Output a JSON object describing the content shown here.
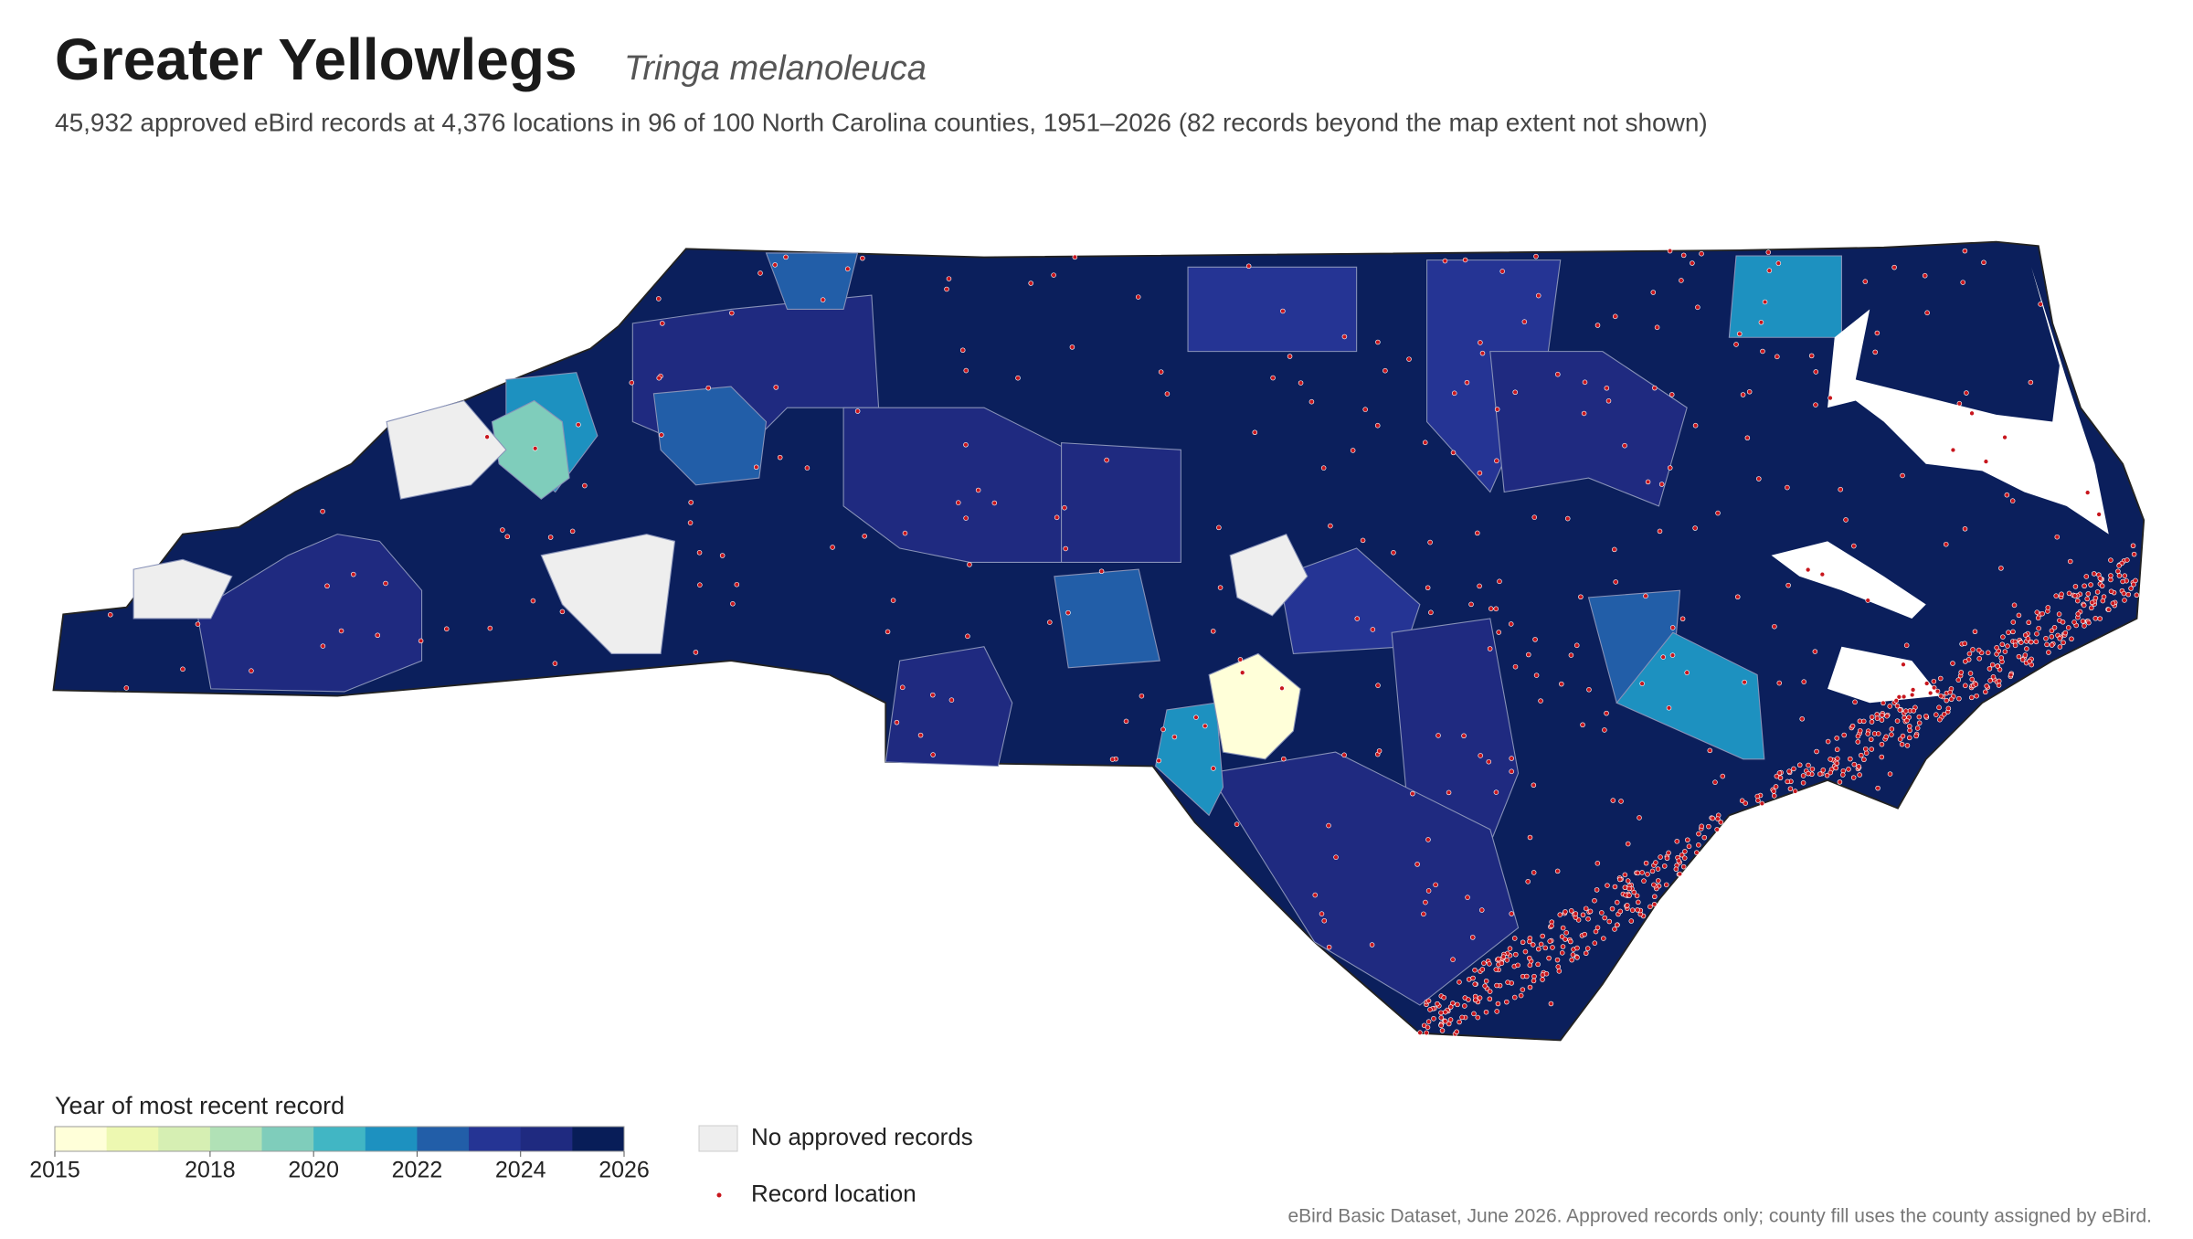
{
  "header": {
    "title": "Greater Yellowlegs",
    "scientific_name": "Tringa melanoleuca",
    "description": "45,932 approved eBird records at 4,376 locations in 96 of 100 North Carolina counties, 1951–2026 (82 records beyond the map extent not shown)"
  },
  "legend": {
    "title": "Year of most recent record",
    "range": [
      2015,
      2026
    ],
    "ticks": [
      2015,
      2018,
      2020,
      2022,
      2024,
      2026
    ],
    "colors": [
      "#ffffd9",
      "#edf8b1",
      "#d6efb3",
      "#b1e1b6",
      "#7fcdbb",
      "#41b6c4",
      "#1d91c0",
      "#225ea8",
      "#253494",
      "#1f2a80",
      "#081d58"
    ],
    "no_records_label": "No approved records",
    "no_records_color": "#eeeeee",
    "record_label": "Record location",
    "record_color": "#c8161d"
  },
  "footer": {
    "source": "eBird Basic Dataset, June 2026. Approved records only; county fill uses the county assigned by eBird."
  }
}
